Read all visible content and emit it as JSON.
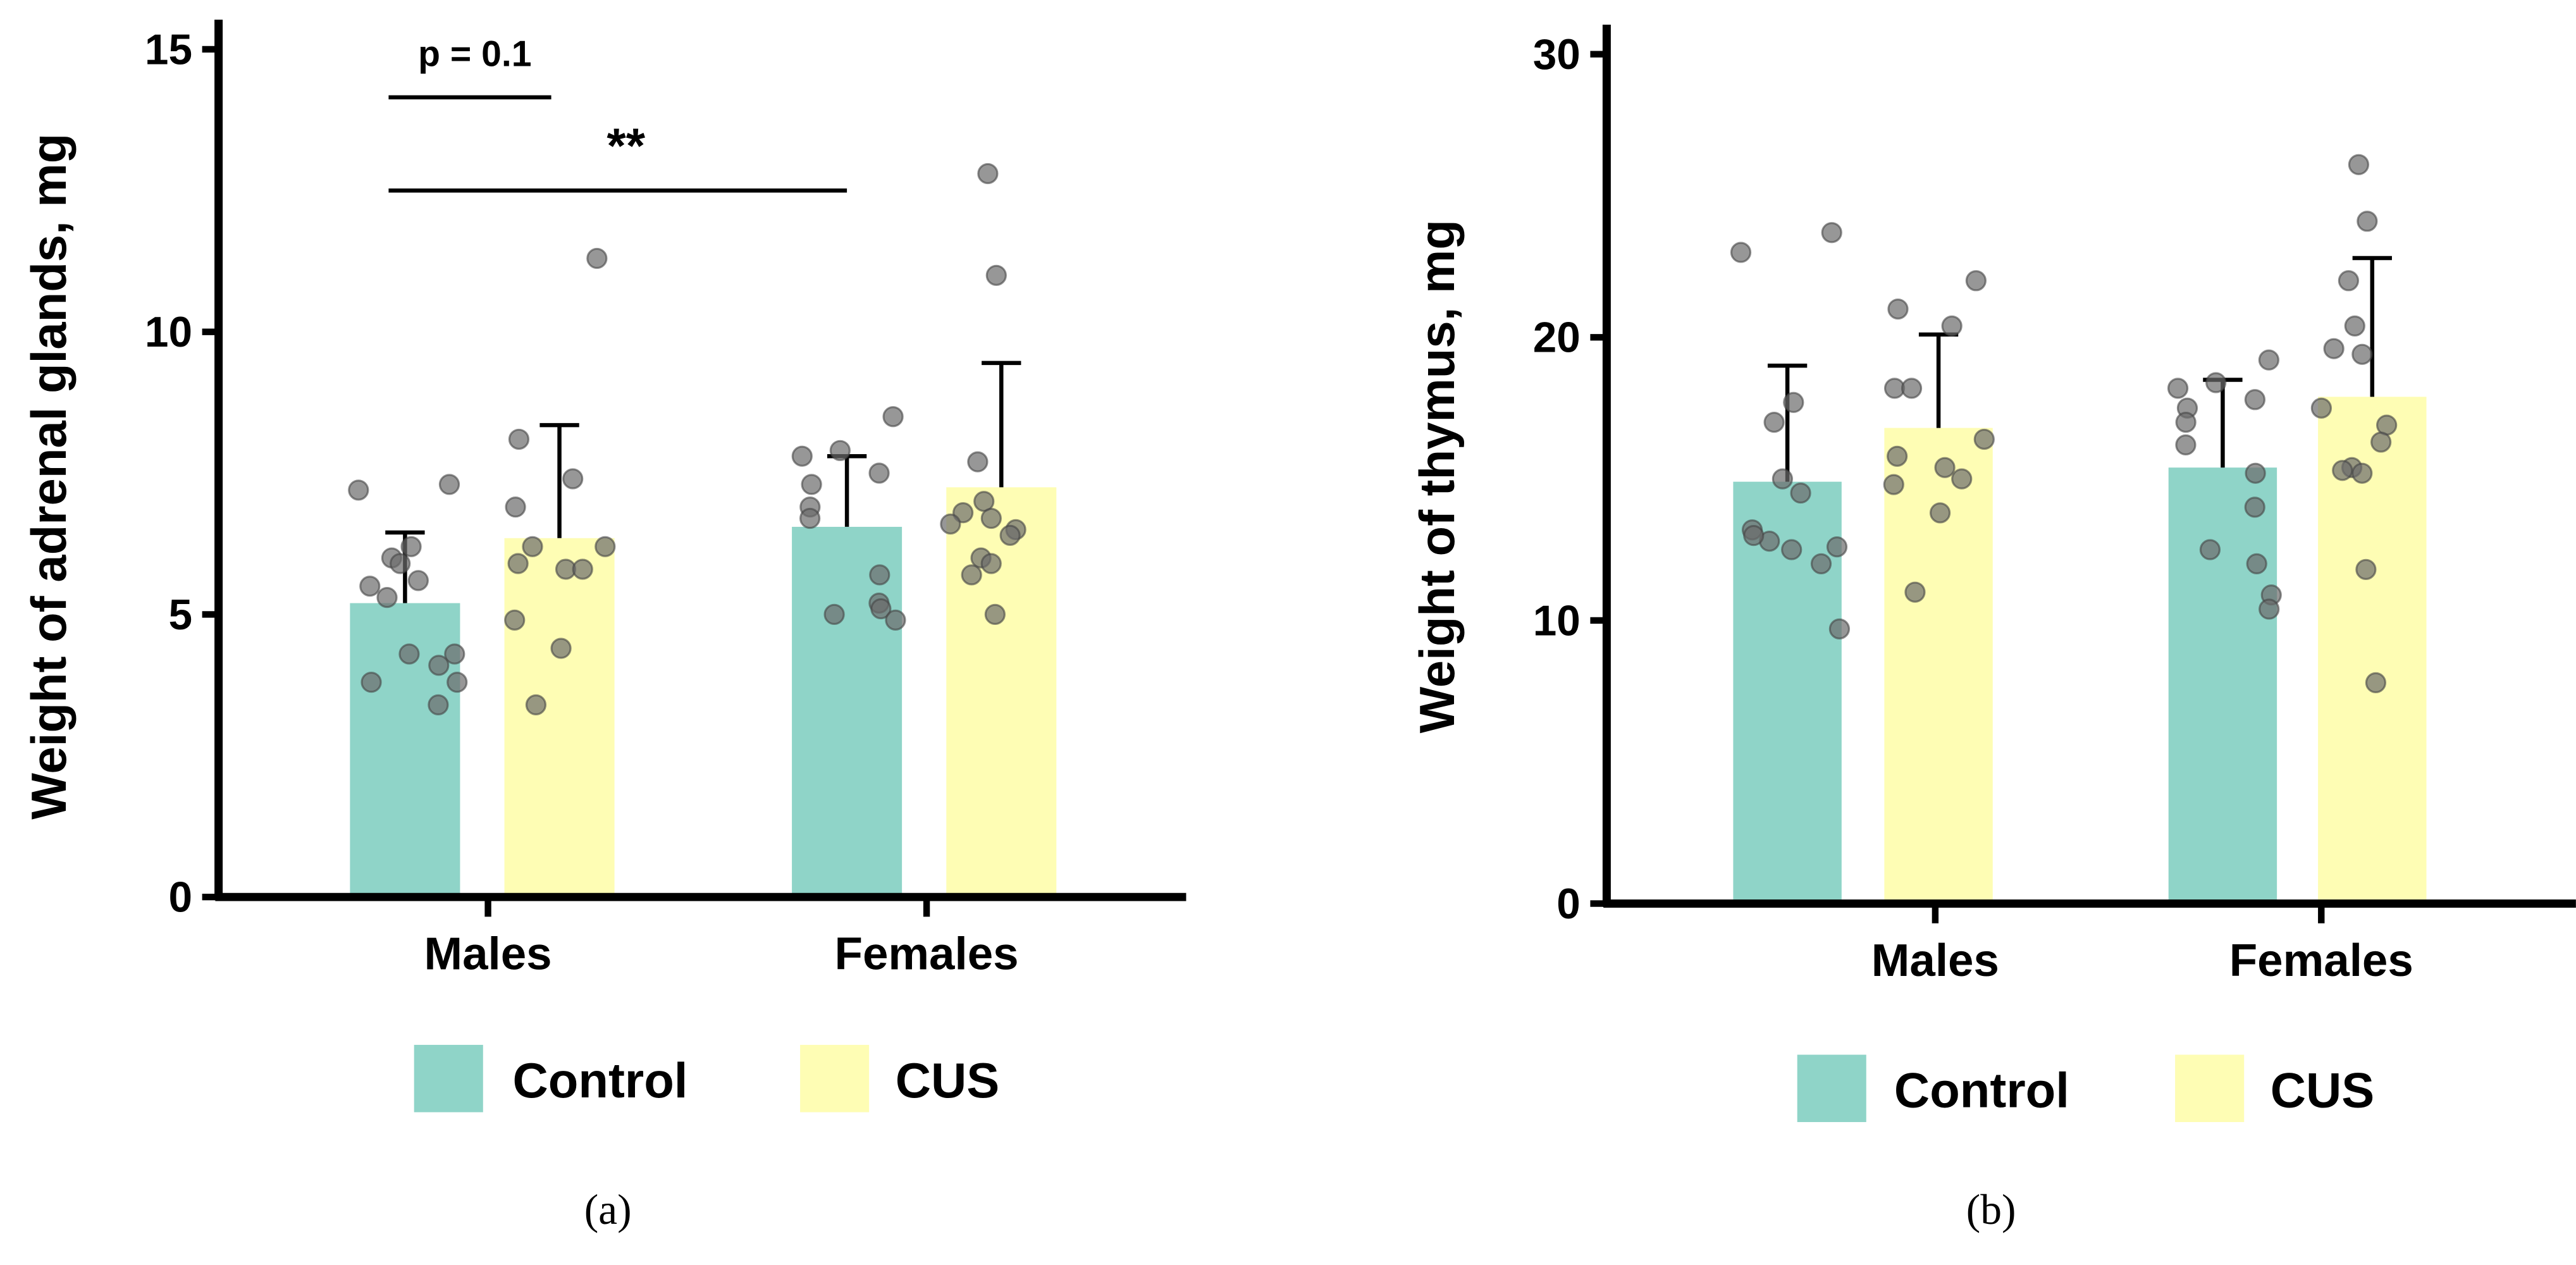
{
  "chart_data": [
    {
      "type": "bar",
      "panel_label": "(a)",
      "ylabel": "Weight of adrenal glands, mg",
      "ylim": [
        0,
        15
      ],
      "yticks": [
        0,
        5,
        10,
        15
      ],
      "categories": [
        "Males",
        "Females"
      ],
      "legend": {
        "placement": "bottom",
        "entries": [
          "Control",
          "CUS"
        ]
      },
      "colors": {
        "Control": "#8fd4c8",
        "CUS": "#fefdb4",
        "points": "#6b6b6b"
      },
      "series": [
        {
          "name": "Control",
          "means": [
            5.2,
            6.55
          ],
          "sd_upper": [
            6.45,
            7.8
          ],
          "points": [
            [
              7.3,
              7.2,
              6.2,
              6.0,
              5.9,
              5.6,
              5.5,
              5.3,
              4.3,
              4.3,
              4.1,
              3.8,
              3.8,
              3.4
            ],
            [
              8.5,
              7.9,
              7.8,
              7.5,
              7.3,
              6.9,
              6.7,
              5.7,
              5.2,
              5.0,
              5.1,
              4.9
            ]
          ]
        },
        {
          "name": "CUS",
          "means": [
            6.35,
            7.25
          ],
          "sd_upper": [
            8.35,
            9.45
          ],
          "points": [
            [
              11.3,
              8.1,
              7.4,
              6.9,
              6.2,
              6.2,
              5.9,
              5.8,
              5.8,
              4.9,
              4.4,
              3.4
            ],
            [
              12.8,
              11.0,
              7.7,
              7.0,
              6.8,
              6.7,
              6.6,
              6.5,
              6.4,
              6.0,
              5.9,
              5.7,
              5.0
            ]
          ]
        }
      ],
      "annotations": [
        {
          "text": "p = 0.1",
          "from": "Males-Control",
          "to": "Males-CUS",
          "y": 14.15
        },
        {
          "text": "**",
          "from": "Males-Control",
          "to": "Females-Control",
          "y": 12.5
        }
      ]
    },
    {
      "type": "bar",
      "panel_label": "(b)",
      "ylabel": "Weight of thymus, mg",
      "ylim": [
        0,
        30
      ],
      "yticks": [
        0,
        10,
        20,
        30
      ],
      "categories": [
        "Males",
        "Females"
      ],
      "legend": {
        "placement": "bottom",
        "entries": [
          "Control",
          "CUS"
        ]
      },
      "colors": {
        "Control": "#8fd4c8",
        "CUS": "#fefdb4",
        "points": "#6b6b6b"
      },
      "series": [
        {
          "name": "Control",
          "means": [
            14.9,
            15.4
          ],
          "sd_upper": [
            19.0,
            18.5
          ],
          "points": [
            [
              23.7,
              23.0,
              17.7,
              17.0,
              15.0,
              14.5,
              13.2,
              12.8,
              12.5,
              12.6,
              12.0,
              13.0,
              9.7
            ],
            [
              19.2,
              18.4,
              18.2,
              17.8,
              17.5,
              17.0,
              16.2,
              15.2,
              14.0,
              12.5,
              12.0,
              10.9,
              10.4
            ]
          ]
        },
        {
          "name": "CUS",
          "means": [
            16.8,
            17.9
          ],
          "sd_upper": [
            20.1,
            22.8
          ],
          "points": [
            [
              22.0,
              21.0,
              20.4,
              18.2,
              18.2,
              16.4,
              15.8,
              15.4,
              15.0,
              14.8,
              13.8,
              11.0
            ],
            [
              26.1,
              24.1,
              22.0,
              20.4,
              19.6,
              19.4,
              17.5,
              16.9,
              16.3,
              15.4,
              15.2,
              15.3,
              11.8,
              7.8
            ]
          ]
        }
      ],
      "annotations": []
    }
  ]
}
